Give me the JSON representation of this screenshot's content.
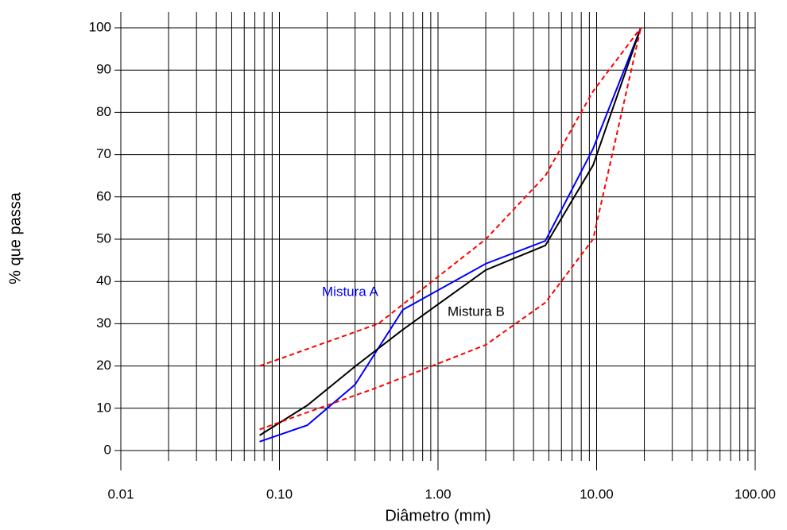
{
  "chart_data": {
    "type": "line",
    "xlabel": "Diâmetro (mm)",
    "ylabel": "% que passa",
    "xscale": "log",
    "xlim": [
      0.01,
      100
    ],
    "ylim": [
      0,
      100
    ],
    "xticks": [
      0.01,
      {
        "value": 0.1,
        "label": "0.10"
      },
      {
        "value": 1,
        "label": "1.00"
      },
      {
        "value": 10,
        "label": "10.00"
      },
      {
        "value": 100,
        "label": "100.00"
      }
    ],
    "yticks": [
      0,
      10,
      20,
      30,
      40,
      50,
      60,
      70,
      80,
      90,
      100
    ],
    "grid": true,
    "series": [
      {
        "name": "Mistura A",
        "color": "#0000ff",
        "style": "solid",
        "x": [
          0.075,
          0.15,
          0.3,
          0.6,
          2.0,
          4.75,
          9.5,
          19
        ],
        "values": [
          2.1,
          6,
          15.6,
          33.3,
          44.2,
          49.6,
          71.4,
          100
        ]
      },
      {
        "name": "Mistura B",
        "color": "#000000",
        "style": "solid",
        "x": [
          0.075,
          0.15,
          0.3,
          0.6,
          2.0,
          4.75,
          9.5,
          19
        ],
        "values": [
          3.6,
          10.7,
          19.9,
          28.6,
          42.7,
          48.5,
          67.5,
          100
        ]
      },
      {
        "color": "#ff0000",
        "style": "dashed",
        "x": [
          0.075,
          0.42,
          2.0,
          4.75,
          9.5,
          19
        ],
        "values": [
          20,
          30,
          50,
          65,
          85,
          100
        ]
      },
      {
        "color": "#ff0000",
        "style": "dashed",
        "x": [
          0.075,
          0.42,
          2.0,
          4.75,
          9.5,
          19
        ],
        "values": [
          5,
          15,
          25,
          35,
          50,
          100
        ]
      }
    ]
  }
}
